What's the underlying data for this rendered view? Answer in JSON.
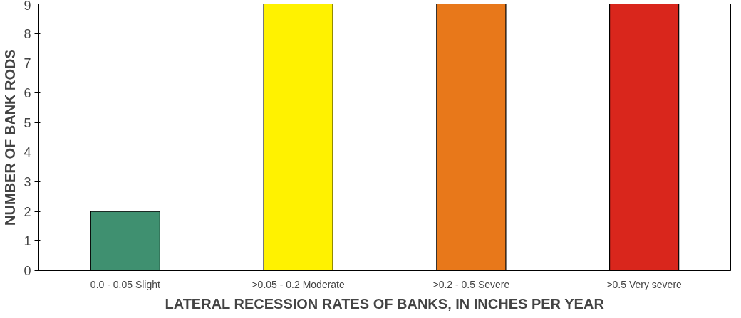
{
  "chart_data": {
    "type": "bar",
    "xlabel": "LATERAL RECESSION RATES OF BANKS, IN INCHES PER YEAR",
    "ylabel": "NUMBER OF BANK RODS",
    "categories": [
      "0.0 - 0.05 Slight",
      ">0.05 - 0.2 Moderate",
      ">0.2 - 0.5 Severe",
      ">0.5 Very severe"
    ],
    "values": [
      2,
      9,
      9,
      9
    ],
    "colors": [
      "#3f9070",
      "#fff200",
      "#e8781a",
      "#d9261c"
    ],
    "ylim": [
      0,
      9
    ],
    "yticks": [
      0,
      1,
      2,
      3,
      4,
      5,
      6,
      7,
      8,
      9
    ],
    "grid": false
  }
}
